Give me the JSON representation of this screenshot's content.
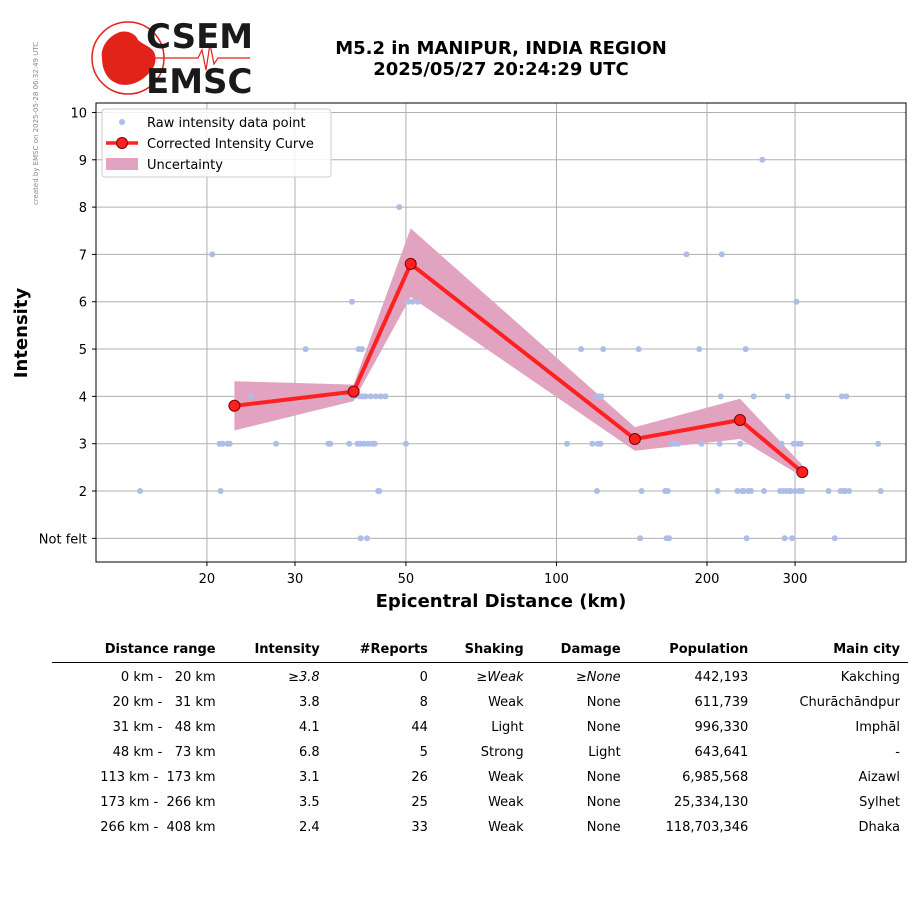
{
  "side_note": "created by EMSC on 2025-05-28 06:32:49 UTC",
  "logo": {
    "line1": "CSEM",
    "line2": "EMSC",
    "colors": {
      "red": "#e2231a",
      "dark": "#1a1a1a"
    }
  },
  "title": {
    "line1": "M5.2 in MANIPUR, INDIA REGION",
    "line2": "2025/05/27 20:24:29 UTC"
  },
  "chart_data": {
    "type": "scatter",
    "x_scale": "log",
    "xlim": [
      12,
      500
    ],
    "ylim": [
      0.5,
      10.2
    ],
    "xticks": [
      20,
      30,
      50,
      100,
      200,
      300
    ],
    "yticks": [
      1,
      2,
      3,
      4,
      5,
      6,
      7,
      8,
      9,
      10
    ],
    "ytick_labels": [
      "Not felt",
      "2",
      "3",
      "4",
      "5",
      "6",
      "7",
      "8",
      "9",
      "10"
    ],
    "xlabel": "Epicentral Distance (km)",
    "ylabel": "Intensity",
    "grid": true,
    "legend_position": "top-left",
    "legend": {
      "raw": "Raw intensity data point",
      "curve": "Corrected Intensity Curve",
      "band": "Uncertainty"
    },
    "colors": {
      "raw": "#aebde8",
      "curve": "#ff2020",
      "marker_edge": "#7a0000",
      "band": "#e2a3c1"
    },
    "series": [
      {
        "name": "Raw intensity data point",
        "kind": "points",
        "points": [
          [
            14.7,
            2
          ],
          [
            20.5,
            7
          ],
          [
            21.2,
            3
          ],
          [
            21.3,
            2
          ],
          [
            21.5,
            3
          ],
          [
            22,
            3
          ],
          [
            22.2,
            3
          ],
          [
            24.5,
            4
          ],
          [
            27.5,
            3
          ],
          [
            31.5,
            5
          ],
          [
            35,
            3
          ],
          [
            35.3,
            3
          ],
          [
            37,
            4
          ],
          [
            38.5,
            3
          ],
          [
            39,
            6
          ],
          [
            39.5,
            4
          ],
          [
            40,
            3
          ],
          [
            40.2,
            5
          ],
          [
            40.4,
            4
          ],
          [
            40.5,
            3
          ],
          [
            40.6,
            1
          ],
          [
            40.8,
            5
          ],
          [
            41,
            4
          ],
          [
            41.2,
            3
          ],
          [
            41.5,
            4
          ],
          [
            41.8,
            1
          ],
          [
            42,
            3
          ],
          [
            42.5,
            4
          ],
          [
            42.8,
            3
          ],
          [
            43,
            5
          ],
          [
            43.3,
            3
          ],
          [
            43.5,
            4
          ],
          [
            44,
            2
          ],
          [
            44.2,
            2
          ],
          [
            44.5,
            4
          ],
          [
            45.5,
            4
          ],
          [
            48.5,
            8
          ],
          [
            50,
            3
          ],
          [
            50.5,
            6
          ],
          [
            51.5,
            6
          ],
          [
            52.8,
            6
          ],
          [
            105,
            3
          ],
          [
            112,
            5
          ],
          [
            118,
            3
          ],
          [
            120,
            4
          ],
          [
            120.5,
            2
          ],
          [
            121,
            3
          ],
          [
            121.5,
            4
          ],
          [
            122.5,
            3
          ],
          [
            123,
            4
          ],
          [
            124,
            5
          ],
          [
            146,
            5
          ],
          [
            147,
            1
          ],
          [
            148,
            2
          ],
          [
            165,
            2
          ],
          [
            166,
            1
          ],
          [
            167,
            2
          ],
          [
            168,
            1
          ],
          [
            170,
            3
          ],
          [
            172,
            3
          ],
          [
            175,
            3
          ],
          [
            182,
            7
          ],
          [
            193,
            5
          ],
          [
            195,
            3
          ],
          [
            210,
            2
          ],
          [
            212,
            3
          ],
          [
            213,
            4
          ],
          [
            214,
            7
          ],
          [
            230,
            2
          ],
          [
            233,
            3
          ],
          [
            235,
            2
          ],
          [
            237,
            2
          ],
          [
            239,
            5
          ],
          [
            240,
            1
          ],
          [
            242,
            2
          ],
          [
            245,
            2
          ],
          [
            248,
            4
          ],
          [
            258,
            9
          ],
          [
            260,
            2
          ],
          [
            280,
            2
          ],
          [
            282,
            3
          ],
          [
            284,
            2
          ],
          [
            286,
            1
          ],
          [
            288,
            2
          ],
          [
            290,
            4
          ],
          [
            292,
            2
          ],
          [
            294,
            2
          ],
          [
            296,
            1
          ],
          [
            298,
            3
          ],
          [
            300,
            2
          ],
          [
            302,
            6
          ],
          [
            304,
            3
          ],
          [
            306,
            2
          ],
          [
            308,
            3
          ],
          [
            310,
            2
          ],
          [
            350,
            2
          ],
          [
            360,
            1
          ],
          [
            370,
            2
          ],
          [
            372,
            4
          ],
          [
            375,
            2
          ],
          [
            378,
            2
          ],
          [
            380,
            4
          ],
          [
            385,
            2
          ],
          [
            440,
            3
          ],
          [
            445,
            2
          ]
        ]
      },
      {
        "name": "Corrected Intensity Curve",
        "kind": "line",
        "x": [
          22.7,
          39.3,
          51.1,
          143.5,
          232.8,
          310.2
        ],
        "y": [
          3.8,
          4.1,
          6.8,
          3.1,
          3.5,
          2.4
        ]
      },
      {
        "name": "Uncertainty",
        "kind": "band",
        "x": [
          22.7,
          39.3,
          51.1,
          143.5,
          232.8,
          310.2
        ],
        "lower": [
          3.28,
          3.9,
          6.1,
          2.85,
          3.1,
          2.3
        ],
        "upper": [
          4.32,
          4.25,
          7.55,
          3.35,
          3.95,
          2.55
        ]
      }
    ]
  },
  "table": {
    "headers": [
      "Distance range",
      "Intensity",
      "#Reports",
      "Shaking",
      "Damage",
      "Population",
      "Main city"
    ],
    "rows": [
      [
        "0 km -   20 km",
        "≥3.8",
        "0",
        "≥Weak",
        "≥None",
        "442,193",
        "Kakching"
      ],
      [
        "20 km -   31 km",
        "3.8",
        "8",
        "Weak",
        "None",
        "611,739",
        "Churāchāndpur"
      ],
      [
        "31 km -   48 km",
        "4.1",
        "44",
        "Light",
        "None",
        "996,330",
        "Imphāl"
      ],
      [
        "48 km -   73 km",
        "6.8",
        "5",
        "Strong",
        "Light",
        "643,641",
        "-"
      ],
      [
        "113 km -  173 km",
        "3.1",
        "26",
        "Weak",
        "None",
        "6,985,568",
        "Aizawl"
      ],
      [
        "173 km -  266 km",
        "3.5",
        "25",
        "Weak",
        "None",
        "25,334,130",
        "Sylhet"
      ],
      [
        "266 km -  408 km",
        "2.4",
        "33",
        "Weak",
        "None",
        "118,703,346",
        "Dhaka"
      ]
    ],
    "italic_row": 0,
    "italic_cols": [
      1,
      3,
      4
    ]
  }
}
